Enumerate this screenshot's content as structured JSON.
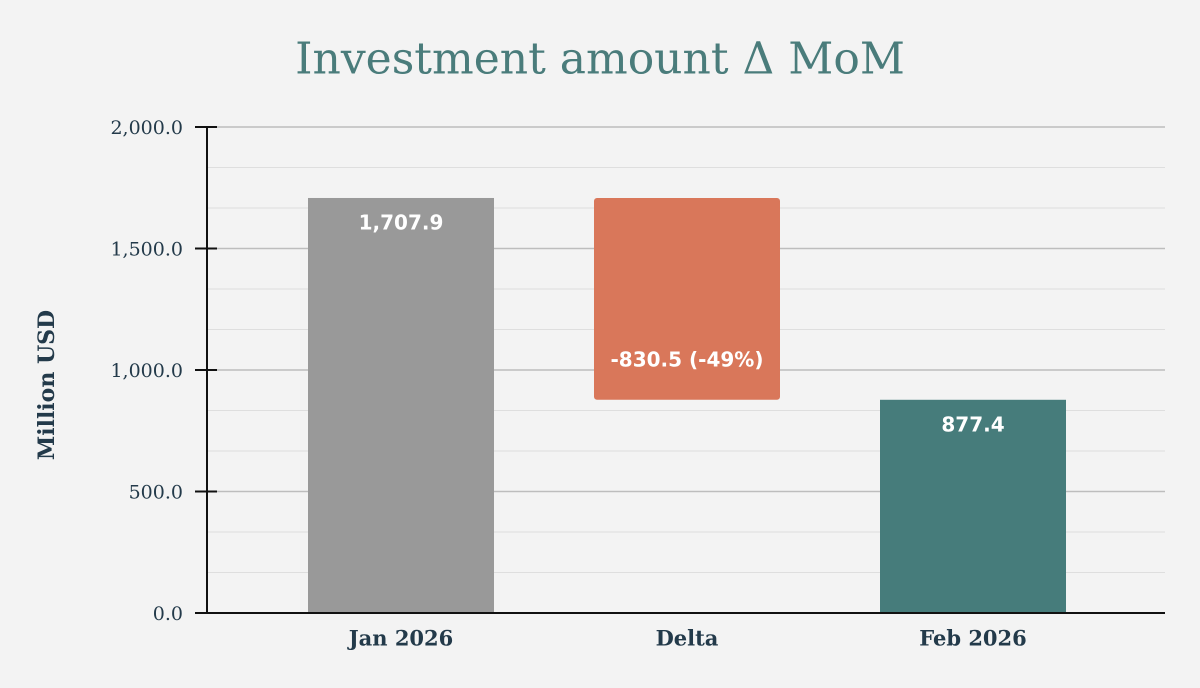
{
  "chart_data": {
    "type": "waterfall",
    "title": "Investment amount Δ MoM",
    "y_label": "Million USD",
    "categories": [
      "Jan 2026",
      "Delta",
      "Feb 2026"
    ],
    "values": [
      1707.9,
      -830.5,
      877.4
    ],
    "value_labels": [
      "1,707.9",
      "-830.5 (-49%)",
      "877.4"
    ],
    "colors": [
      "#999999",
      "#d9775a",
      "#467c7b"
    ],
    "ylim": [
      0,
      2000
    ],
    "yticks": [
      {
        "value": 0,
        "label": "0.0"
      },
      {
        "value": 500,
        "label": "500.0"
      },
      {
        "value": 1000,
        "label": "1,000.0"
      },
      {
        "value": 1500,
        "label": "1,500.0"
      },
      {
        "value": 2000,
        "label": "2,000.0"
      }
    ],
    "grid": true
  }
}
